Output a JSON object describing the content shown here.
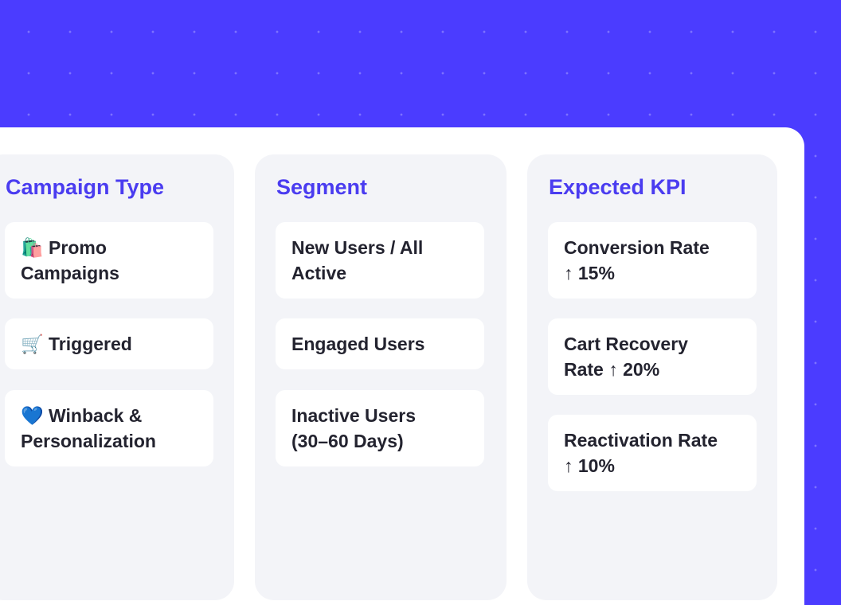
{
  "columns": [
    {
      "title": "Campaign Type",
      "cards": [
        {
          "lines": [
            "🛍️ Promo",
            "Campaigns"
          ]
        },
        {
          "lines": [
            "🛒 Triggered"
          ]
        },
        {
          "lines": [
            "💙 Winback &",
            "Personalization"
          ]
        }
      ]
    },
    {
      "title": "Segment",
      "cards": [
        {
          "lines": [
            "New Users / All",
            "Active"
          ]
        },
        {
          "lines": [
            "Engaged Users"
          ]
        },
        {
          "lines": [
            "Inactive Users",
            "(30–60 Days)"
          ]
        }
      ]
    },
    {
      "title": "Expected KPI",
      "cards": [
        {
          "lines": [
            "Conversion Rate",
            "↑ 15%"
          ]
        },
        {
          "lines": [
            "Cart Recovery",
            "Rate ↑ 20%"
          ]
        },
        {
          "lines": [
            "Reactivation Rate",
            "↑ 10%"
          ]
        }
      ]
    }
  ]
}
